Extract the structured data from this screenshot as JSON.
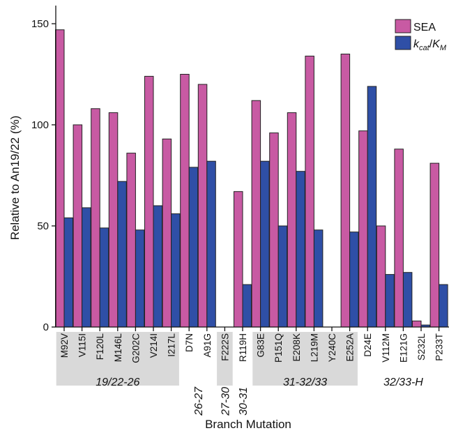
{
  "chart_data": {
    "type": "bar",
    "ylabel": "Relative to An19/22 (%)",
    "xlabel": "Branch Mutation",
    "ylim": [
      0,
      160
    ],
    "yticks": [
      0,
      50,
      100,
      150
    ],
    "categories": [
      "M92V",
      "V115I",
      "F120L",
      "M146L",
      "G202C",
      "V214I",
      "I217L",
      "D7N",
      "A91G",
      "F222S",
      "R119H",
      "G83E",
      "P151Q",
      "E208K",
      "L219M",
      "Y240C",
      "E252A",
      "D24E",
      "V112M",
      "E121G",
      "S232L",
      "P233T"
    ],
    "series": [
      {
        "name": "SEA",
        "color": "#c85aa3",
        "values": [
          147,
          100,
          108,
          106,
          86,
          124,
          93,
          125,
          120,
          0,
          67,
          112,
          96,
          106,
          134,
          0,
          135,
          97,
          50,
          88,
          3,
          81
        ]
      },
      {
        "name": "k_cat/K_M",
        "color": "#2f4fa6",
        "values": [
          54,
          59,
          49,
          72,
          48,
          60,
          56,
          79,
          82,
          0,
          21,
          82,
          50,
          77,
          48,
          0,
          47,
          119,
          26,
          27,
          1,
          21
        ]
      }
    ],
    "legend": {
      "placement": "top-right",
      "entries": [
        {
          "label": "SEA"
        },
        {
          "label_k": "k",
          "label_sub1": "cat",
          "label_slash": "/",
          "label_K": "K",
          "label_sub2": "M"
        }
      ]
    },
    "groups": [
      {
        "label": "19/22-26",
        "start": 0,
        "end": 6,
        "shaded": true
      },
      {
        "label": "26-27",
        "start": 7,
        "end": 8,
        "shaded": false
      },
      {
        "label": "27-30",
        "start": 9,
        "end": 9,
        "shaded": true
      },
      {
        "label": "30-31",
        "start": 10,
        "end": 10,
        "shaded": false
      },
      {
        "label": "31-32/33",
        "start": 11,
        "end": 16,
        "shaded": true
      },
      {
        "label": "32/33-H",
        "start": 17,
        "end": 21,
        "shaded": false
      }
    ]
  }
}
